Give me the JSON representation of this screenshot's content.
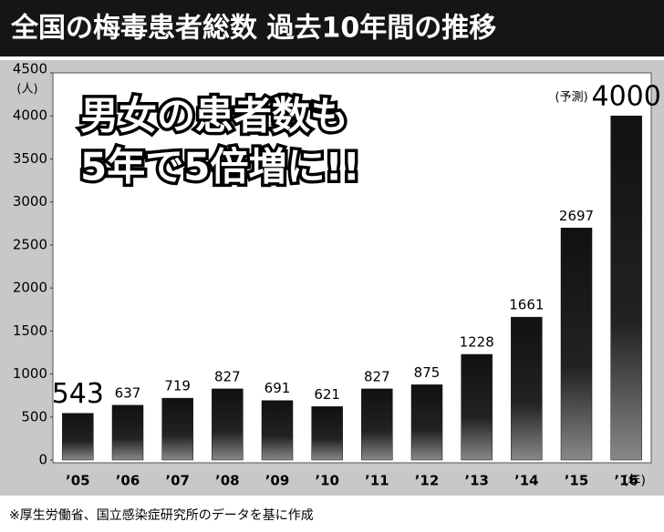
{
  "chart_data": {
    "type": "bar",
    "title": "全国の梅毒患者総数 過去10年間の推移",
    "y_unit": "(人)",
    "x_unit": "(年)",
    "headline": [
      "男女の患者数も",
      "5年で5倍増に!!"
    ],
    "forecast_note": "(予測)",
    "footnote": "※厚生労働省、国立感染症研究所のデータを基に作成",
    "categories": [
      "’05",
      "’06",
      "’07",
      "’08",
      "’09",
      "’10",
      "’11",
      "’12",
      "’13",
      "’14",
      "’15",
      "’16"
    ],
    "values": [
      543,
      637,
      719,
      827,
      691,
      621,
      827,
      875,
      1228,
      1661,
      2697,
      4000
    ],
    "color": "#111111",
    "ylim": [
      0,
      4500
    ],
    "yticks": [
      0,
      500,
      1000,
      1500,
      2000,
      2500,
      3000,
      3500,
      4000,
      4500
    ]
  }
}
